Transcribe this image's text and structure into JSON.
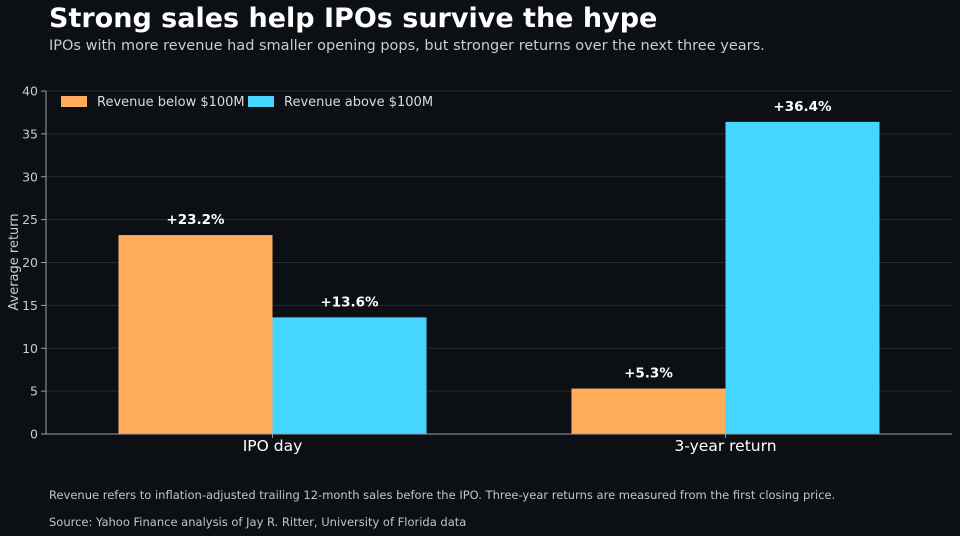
{
  "header": {
    "title": "Strong sales help IPOs survive the hype",
    "subtitle": "IPOs with more revenue had smaller opening pops, but stronger returns over the next three years."
  },
  "footer": {
    "note": "Revenue refers to inflation-adjusted trailing 12-month sales before the IPO. Three-year returns are measured from the first closing price.",
    "source": "Source: Yahoo Finance analysis of Jay R. Ritter, University of Florida data"
  },
  "chart_data": {
    "type": "bar",
    "title": "Strong sales help IPOs survive the hype",
    "subtitle": "IPOs with more revenue had smaller opening pops, but stronger returns over the next three years.",
    "categories": [
      "IPO day",
      "3-year return"
    ],
    "series": [
      {
        "name": "Revenue below $100M",
        "values": [
          23.2,
          5.3
        ],
        "labels": [
          "+23.2%",
          "+5.3%"
        ],
        "color": "#ffad5a"
      },
      {
        "name": "Revenue above $100M",
        "values": [
          13.6,
          36.4
        ],
        "labels": [
          "+13.6%",
          "+36.4%"
        ],
        "color": "#45d6ff"
      }
    ],
    "xlabel": "",
    "ylabel": "Average return",
    "ylim": [
      0,
      40
    ],
    "yticks": [
      0,
      5,
      10,
      15,
      20,
      25,
      30,
      35,
      40
    ],
    "grid": true,
    "legend": "top-left"
  }
}
